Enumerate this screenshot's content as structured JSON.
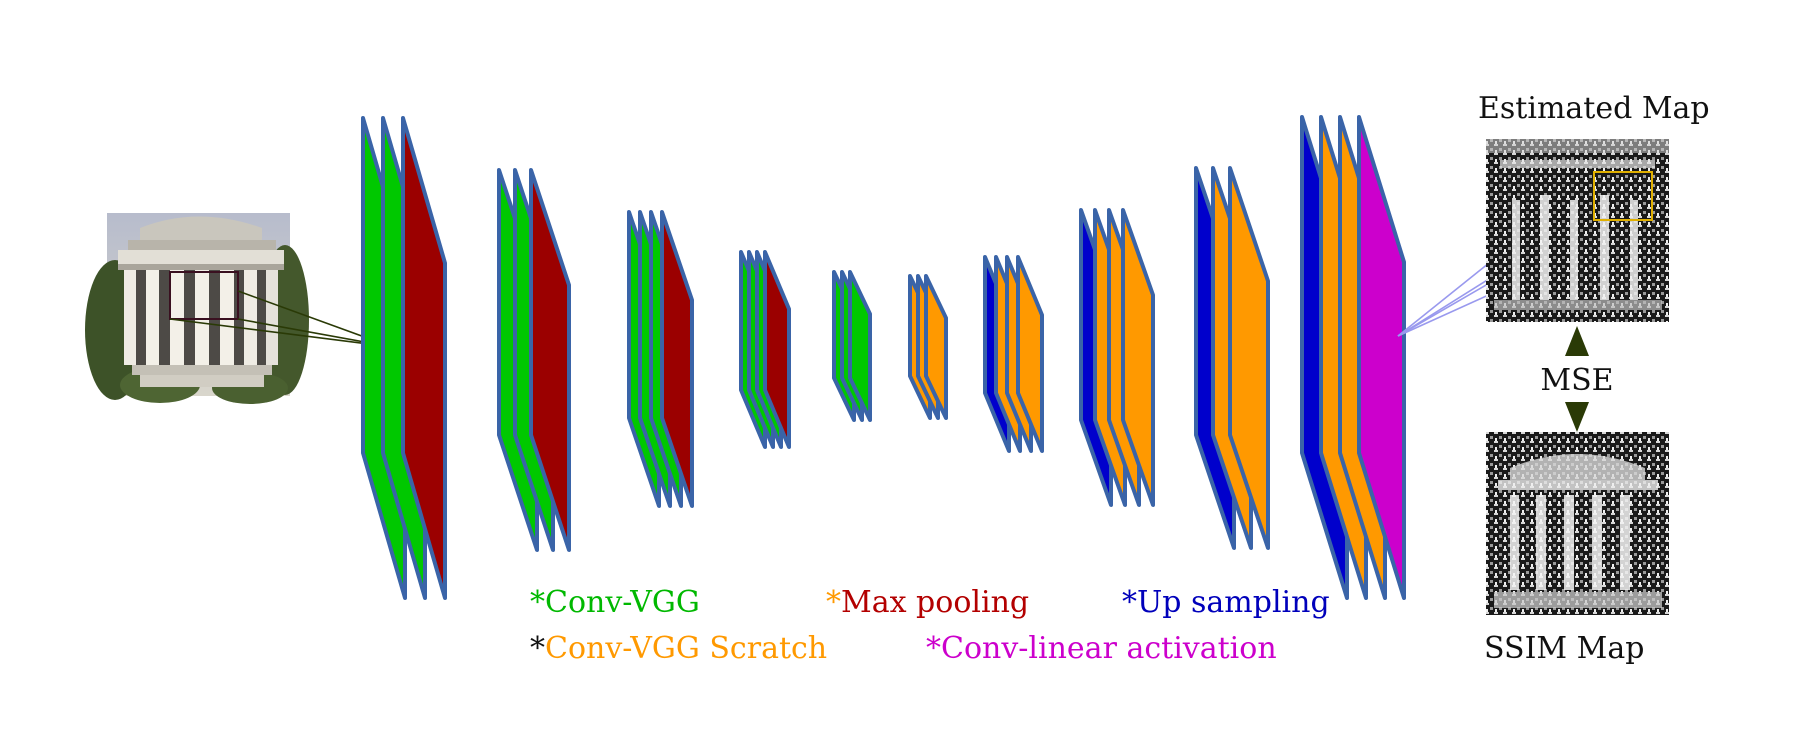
{
  "labels": {
    "estimated_map": "Estimated Map",
    "ssim_map": "SSIM Map",
    "mse": "MSE"
  },
  "legend": [
    {
      "marker": "*",
      "marker_color": "#00b800",
      "text": "Conv-VGG",
      "text_color": "#00b800"
    },
    {
      "marker": "*",
      "marker_color": "#ff9900",
      "text": "Max pooling",
      "text_color": "#b30000"
    },
    {
      "marker": "*",
      "marker_color": "#0000bb",
      "text": "Up sampling",
      "text_color": "#0000bb"
    },
    {
      "marker": "*",
      "marker_color": "#111111",
      "text": "Conv-VGG Scratch",
      "text_color": "#ff9900"
    },
    {
      "marker": "*",
      "marker_color": "#cc00cc",
      "text": "Conv-linear activation",
      "text_color": "#cc00cc"
    }
  ],
  "layer_types": {
    "conv_vgg": {
      "color": "#00c800"
    },
    "max_pooling": {
      "color": "#9b0000"
    },
    "conv_vgg_scratch": {
      "color": "#ff9900"
    },
    "up_sampling": {
      "color": "#0000cc"
    },
    "conv_linear": {
      "color": "#cc00cc"
    }
  },
  "blocks": [
    {
      "name": "block-1",
      "layers": [
        "conv_vgg",
        "conv_vgg",
        "max_pooling"
      ]
    },
    {
      "name": "block-2",
      "layers": [
        "conv_vgg",
        "conv_vgg",
        "max_pooling"
      ]
    },
    {
      "name": "block-3",
      "layers": [
        "conv_vgg",
        "conv_vgg",
        "conv_vgg",
        "max_pooling"
      ]
    },
    {
      "name": "block-4",
      "layers": [
        "conv_vgg",
        "conv_vgg",
        "conv_vgg",
        "max_pooling"
      ]
    },
    {
      "name": "block-5",
      "layers": [
        "conv_vgg",
        "conv_vgg",
        "conv_vgg"
      ]
    },
    {
      "name": "block-6",
      "layers": [
        "conv_vgg_scratch",
        "conv_vgg_scratch",
        "conv_vgg_scratch"
      ]
    },
    {
      "name": "block-7",
      "layers": [
        "up_sampling",
        "conv_vgg_scratch",
        "conv_vgg_scratch",
        "conv_vgg_scratch"
      ]
    },
    {
      "name": "block-8",
      "layers": [
        "up_sampling",
        "conv_vgg_scratch",
        "conv_vgg_scratch",
        "conv_vgg_scratch"
      ]
    },
    {
      "name": "block-9",
      "layers": [
        "up_sampling",
        "conv_vgg_scratch",
        "conv_vgg_scratch"
      ]
    },
    {
      "name": "block-10",
      "layers": [
        "up_sampling",
        "conv_vgg_scratch",
        "conv_vgg_scratch",
        "conv_linear"
      ]
    }
  ],
  "colors": {
    "layer_border": "#3a64a8",
    "arrow": "#2a3a06",
    "input_lines": "#2a3a06",
    "output_lines": "#9999ee",
    "highlight_box": "#e0b000",
    "input_box": "#3a1020"
  }
}
